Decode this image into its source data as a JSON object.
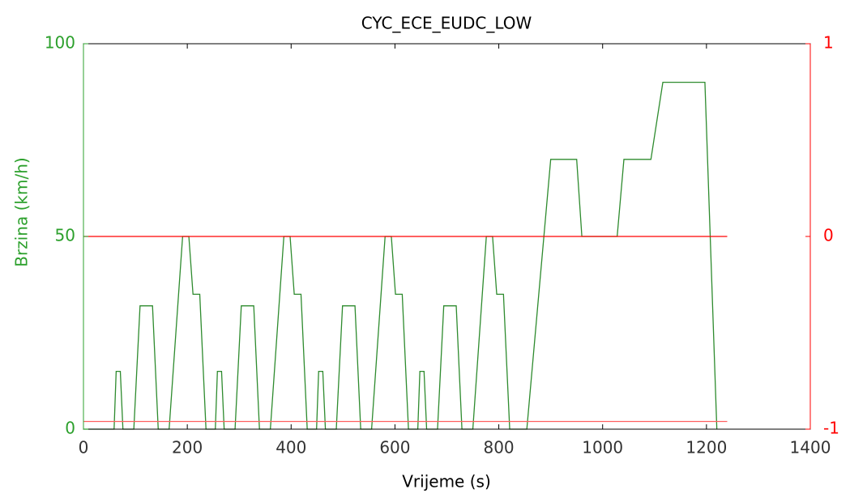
{
  "chart_data": {
    "type": "line",
    "title": "CYC_ECE_EUDC_LOW",
    "x_label": "Vrijeme (s)",
    "y_label": "Brzina (km/h)",
    "xlim": [
      0,
      1400
    ],
    "xticks": [
      0,
      200,
      400,
      600,
      800,
      1000,
      1200,
      1400
    ],
    "ylim": [
      0,
      100
    ],
    "yticks": [
      0,
      50,
      100
    ],
    "y_color": "#2ca02c",
    "y2lim": [
      -1,
      1
    ],
    "y2ticks": [
      -1,
      0,
      1
    ],
    "y2_color": "#ff0000",
    "series": [
      {
        "color": "#2e8b2e",
        "x": [
          0,
          48,
          59,
          63,
          71,
          76,
          97,
          109,
          133,
          144,
          165,
          191,
          203,
          211,
          224,
          236,
          243,
          254,
          258,
          266,
          271,
          292,
          304,
          328,
          339,
          360,
          386,
          398,
          406,
          419,
          431,
          438,
          449,
          453,
          461,
          466,
          487,
          499,
          523,
          534,
          555,
          581,
          593,
          601,
          614,
          626,
          633,
          644,
          648,
          656,
          661,
          682,
          694,
          718,
          729,
          750,
          776,
          788,
          796,
          809,
          821,
          828,
          854,
          900,
          950,
          960,
          1028,
          1041,
          1093,
          1116,
          1197,
          1220
        ],
        "values": [
          0,
          0,
          0,
          15,
          15,
          0,
          0,
          32,
          32,
          0,
          0,
          50,
          50,
          35,
          35,
          0,
          0,
          0,
          15,
          15,
          0,
          0,
          32,
          32,
          0,
          0,
          50,
          50,
          35,
          35,
          0,
          0,
          0,
          15,
          15,
          0,
          0,
          32,
          32,
          0,
          0,
          50,
          50,
          35,
          35,
          0,
          0,
          0,
          15,
          15,
          0,
          0,
          32,
          32,
          0,
          0,
          50,
          50,
          35,
          35,
          0,
          0,
          0,
          70,
          70,
          50,
          50,
          70,
          70,
          90,
          90,
          0
        ]
      },
      {
        "color": "#ff0000",
        "axis": "y2",
        "x": [
          0,
          1240
        ],
        "values": [
          0,
          0
        ]
      },
      {
        "color": "#ff6060",
        "axis": "y2",
        "x": [
          0,
          1240
        ],
        "values": [
          -0.96,
          -0.96
        ]
      }
    ]
  }
}
